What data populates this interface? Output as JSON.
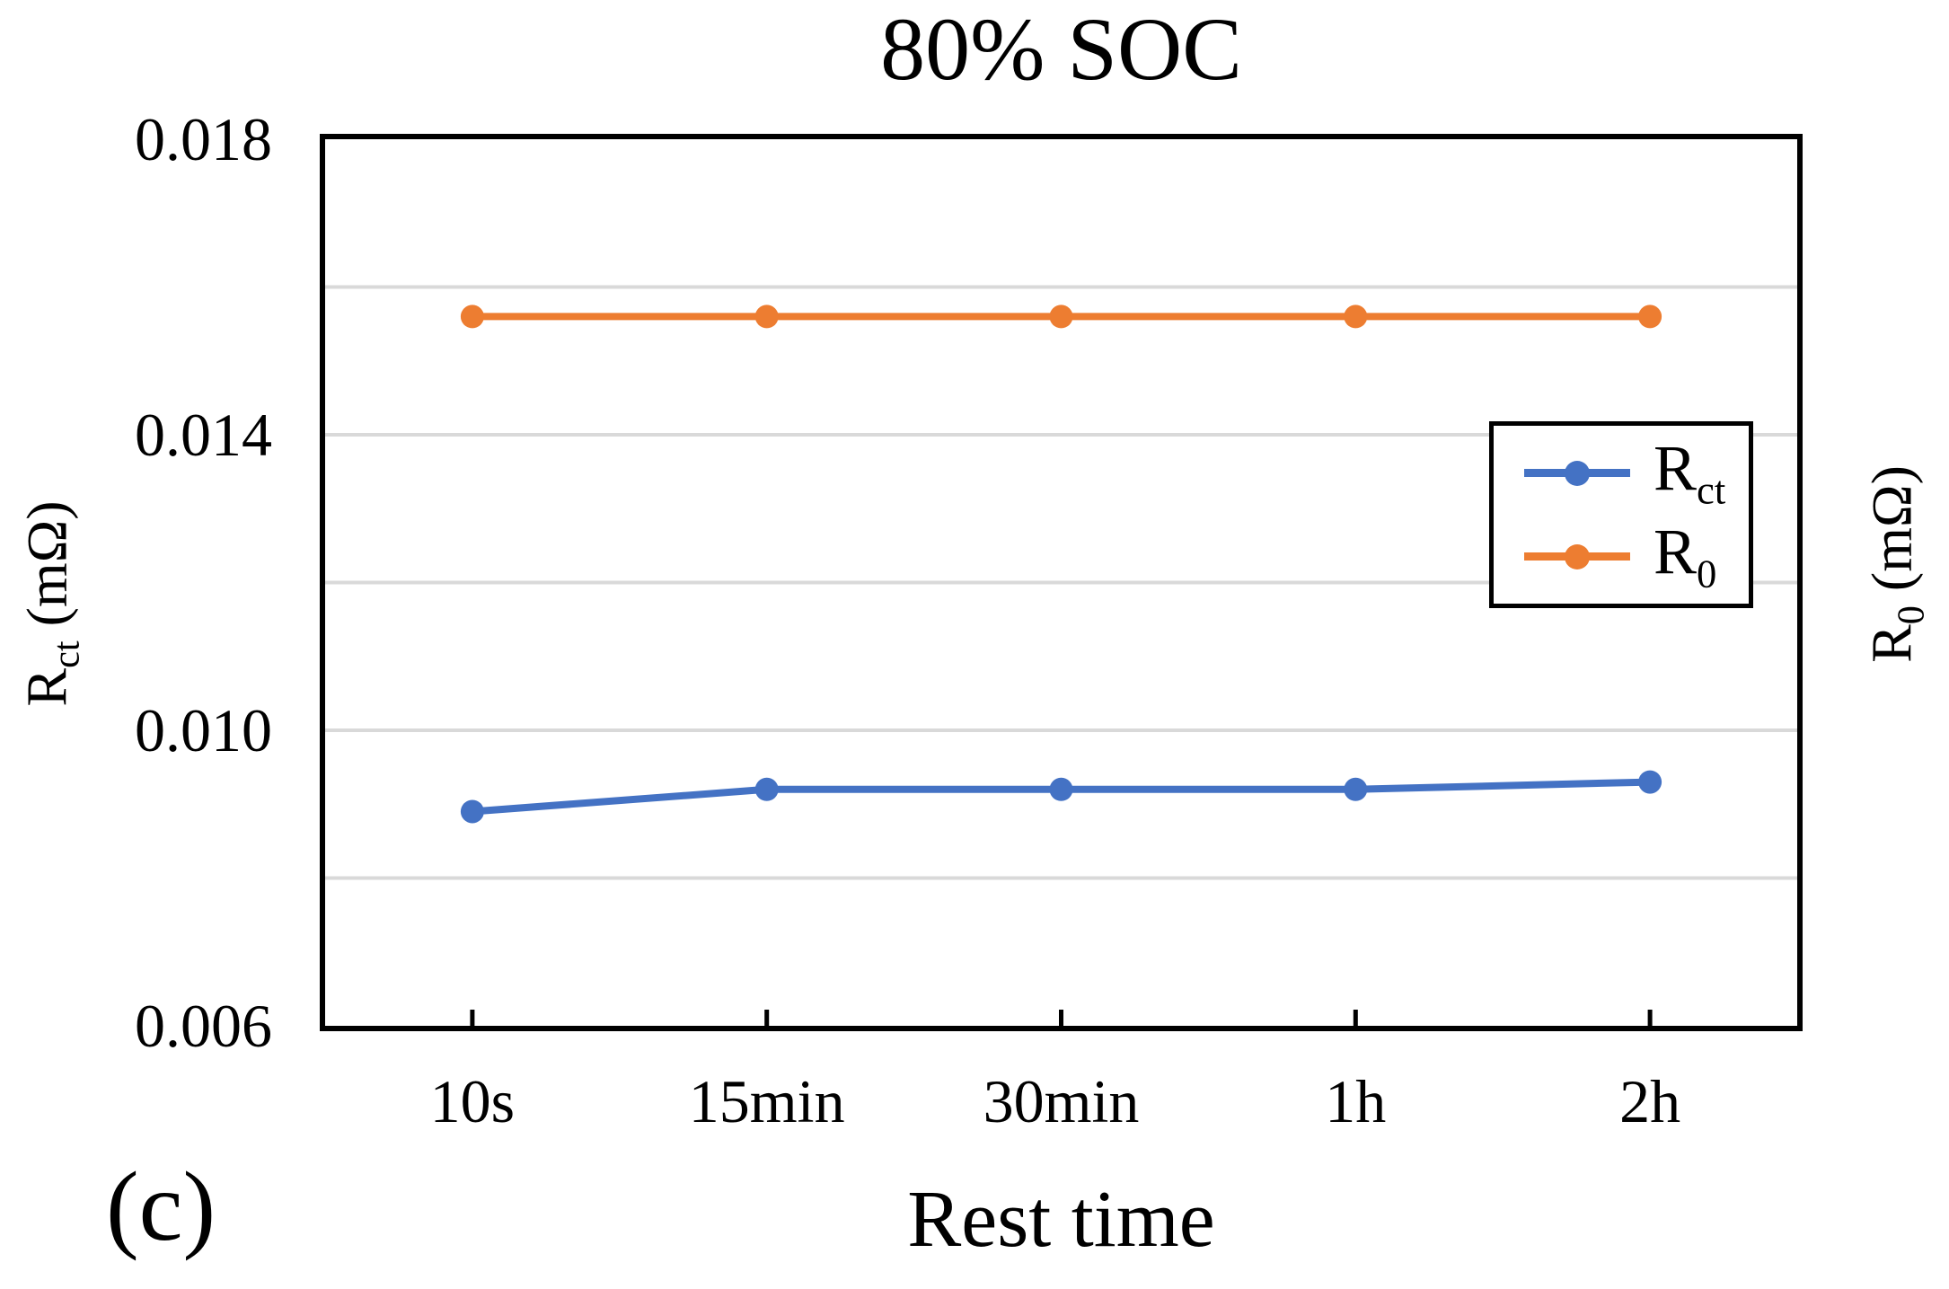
{
  "title": "80% SOC",
  "panel_label": "(c)",
  "colors": {
    "rct_series": "#4472C4",
    "r0_series": "#ED7D31",
    "gridline": "#D9D9D9",
    "axis": "#000000",
    "background": "#FFFFFF"
  },
  "axes": {
    "x": {
      "label": "Rest time",
      "ticks": [
        "10s",
        "15min",
        "30min",
        "1h",
        "2h"
      ]
    },
    "y_left": {
      "label_main": "R",
      "label_sub": "ct",
      "label_unit": " (mΩ)",
      "ticks": [
        "0.018",
        "0.014",
        "0.010",
        "0.006"
      ]
    },
    "y_right": {
      "label_main": "R",
      "label_sub": "0",
      "label_unit": " (mΩ)"
    }
  },
  "legend": {
    "items": [
      {
        "id": "rct",
        "label_main": "R",
        "label_sub": "ct",
        "color": "#4472C4"
      },
      {
        "id": "r0",
        "label_main": "R",
        "label_sub": "0",
        "color": "#ED7D31"
      }
    ]
  },
  "chart_data": {
    "type": "line",
    "title": "80% SOC",
    "categories": [
      "10s",
      "15min",
      "30min",
      "1h",
      "2h"
    ],
    "series": [
      {
        "name": "Rct",
        "color": "#4472C4",
        "axis": "left",
        "values": [
          0.0089,
          0.0092,
          0.0092,
          0.0092,
          0.0093
        ]
      },
      {
        "name": "R0",
        "color": "#ED7D31",
        "axis": "right",
        "values": [
          0.0156,
          0.0156,
          0.0156,
          0.0156,
          0.0156
        ]
      }
    ],
    "xlabel": "Rest time",
    "ylabel_left": "Rct (mΩ)",
    "ylabel_right": "R0 (mΩ)",
    "ylim_left": [
      0.006,
      0.018
    ],
    "yticks_left": [
      0.018,
      0.014,
      0.01,
      0.006
    ],
    "minor_gridlines": [
      0.016,
      0.014,
      0.012,
      0.01,
      0.008
    ],
    "grid": "horizontal-light",
    "legend_position": "inside-right-middle",
    "marker": "circle",
    "panel_label": "(c)"
  }
}
